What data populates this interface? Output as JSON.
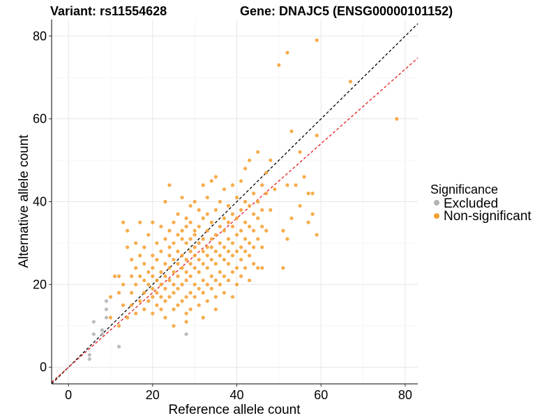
{
  "chart_data": {
    "type": "scatter",
    "title_left": "Variant: rs11554628",
    "title_right": "Gene: DNAJC5 (ENSG00000101152)",
    "xlabel": "Reference allele count",
    "ylabel": "Alternative allele count",
    "xlim": [
      -4,
      83
    ],
    "ylim": [
      -4,
      84
    ],
    "xticks": [
      0,
      20,
      40,
      60,
      80
    ],
    "yticks": [
      0,
      20,
      40,
      60,
      80
    ],
    "grid": true,
    "legend": {
      "title": "Significance",
      "position": "right",
      "entries": [
        {
          "label": "Excluded",
          "color": "#b3b3b3"
        },
        {
          "label": "Non-significant",
          "color": "#f5a033"
        }
      ]
    },
    "reference_lines": [
      {
        "name": "identity",
        "slope": 1.0,
        "intercept": 0,
        "color": "#000000",
        "style": "dashed"
      },
      {
        "name": "fit",
        "slope": 0.9,
        "intercept": 0,
        "color": "#e41a1c",
        "style": "dashed"
      }
    ],
    "series": [
      {
        "name": "Excluded",
        "color": "#b3b3b3",
        "points": [
          [
            5,
            2
          ],
          [
            5,
            3
          ],
          [
            6,
            8
          ],
          [
            6,
            11
          ],
          [
            8,
            8
          ],
          [
            8,
            9
          ],
          [
            9,
            12
          ],
          [
            9,
            14
          ],
          [
            9,
            16
          ],
          [
            12,
            5
          ],
          [
            28,
            8
          ]
        ]
      },
      {
        "name": "Non-significant",
        "color": "#f5a033",
        "points": [
          [
            10,
            12
          ],
          [
            10,
            17
          ],
          [
            11,
            22
          ],
          [
            12,
            10
          ],
          [
            12,
            18
          ],
          [
            12,
            22
          ],
          [
            13,
            15
          ],
          [
            13,
            20
          ],
          [
            13,
            35
          ],
          [
            14,
            12
          ],
          [
            14,
            29
          ],
          [
            14,
            33
          ],
          [
            15,
            15
          ],
          [
            15,
            18
          ],
          [
            15,
            22
          ],
          [
            15,
            26
          ],
          [
            16,
            13
          ],
          [
            16,
            20
          ],
          [
            16,
            24
          ],
          [
            16,
            30
          ],
          [
            17,
            16
          ],
          [
            17,
            22
          ],
          [
            17,
            27
          ],
          [
            17,
            35
          ],
          [
            18,
            14
          ],
          [
            18,
            18
          ],
          [
            18,
            21
          ],
          [
            18,
            25
          ],
          [
            18,
            29
          ],
          [
            19,
            16
          ],
          [
            19,
            20
          ],
          [
            19,
            23
          ],
          [
            19,
            32
          ],
          [
            20,
            13
          ],
          [
            20,
            17
          ],
          [
            20,
            19
          ],
          [
            20,
            22
          ],
          [
            20,
            24
          ],
          [
            20,
            27
          ],
          [
            20,
            35
          ],
          [
            21,
            15
          ],
          [
            21,
            18
          ],
          [
            21,
            21
          ],
          [
            21,
            26
          ],
          [
            21,
            30
          ],
          [
            22,
            14
          ],
          [
            22,
            17
          ],
          [
            22,
            20
          ],
          [
            22,
            23
          ],
          [
            22,
            28
          ],
          [
            22,
            34
          ],
          [
            23,
            12
          ],
          [
            23,
            16
          ],
          [
            23,
            19
          ],
          [
            23,
            22
          ],
          [
            23,
            25
          ],
          [
            23,
            31
          ],
          [
            23,
            40
          ],
          [
            24,
            17
          ],
          [
            24,
            21
          ],
          [
            24,
            24
          ],
          [
            24,
            27
          ],
          [
            24,
            29
          ],
          [
            24,
            33
          ],
          [
            24,
            44
          ],
          [
            25,
            10
          ],
          [
            25,
            14
          ],
          [
            25,
            18
          ],
          [
            25,
            20
          ],
          [
            25,
            23
          ],
          [
            25,
            26
          ],
          [
            25,
            30
          ],
          [
            25,
            35
          ],
          [
            26,
            15
          ],
          [
            26,
            19
          ],
          [
            26,
            22
          ],
          [
            26,
            25
          ],
          [
            26,
            28
          ],
          [
            26,
            32
          ],
          [
            26,
            37
          ],
          [
            27,
            16
          ],
          [
            27,
            20
          ],
          [
            27,
            24
          ],
          [
            27,
            27
          ],
          [
            27,
            31
          ],
          [
            27,
            33
          ],
          [
            27,
            41
          ],
          [
            28,
            11
          ],
          [
            28,
            13
          ],
          [
            28,
            17
          ],
          [
            28,
            21
          ],
          [
            28,
            23
          ],
          [
            28,
            26
          ],
          [
            28,
            30
          ],
          [
            28,
            34
          ],
          [
            28,
            36
          ],
          [
            29,
            14
          ],
          [
            29,
            18
          ],
          [
            29,
            22
          ],
          [
            29,
            25
          ],
          [
            29,
            28
          ],
          [
            29,
            31
          ],
          [
            29,
            35
          ],
          [
            29,
            39
          ],
          [
            30,
            17
          ],
          [
            30,
            20
          ],
          [
            30,
            24
          ],
          [
            30,
            27
          ],
          [
            30,
            29
          ],
          [
            30,
            32
          ],
          [
            30,
            33
          ],
          [
            30,
            40
          ],
          [
            31,
            15
          ],
          [
            31,
            19
          ],
          [
            31,
            23
          ],
          [
            31,
            26
          ],
          [
            31,
            30
          ],
          [
            31,
            34
          ],
          [
            31,
            38
          ],
          [
            32,
            12
          ],
          [
            32,
            18
          ],
          [
            32,
            21
          ],
          [
            32,
            25
          ],
          [
            32,
            28
          ],
          [
            32,
            31
          ],
          [
            32,
            36
          ],
          [
            32,
            44
          ],
          [
            33,
            16
          ],
          [
            33,
            20
          ],
          [
            33,
            24
          ],
          [
            33,
            27
          ],
          [
            33,
            29
          ],
          [
            33,
            33
          ],
          [
            33,
            37
          ],
          [
            33,
            41
          ],
          [
            34,
            19
          ],
          [
            34,
            22
          ],
          [
            34,
            26
          ],
          [
            34,
            29
          ],
          [
            34,
            31
          ],
          [
            34,
            35
          ],
          [
            34,
            45
          ],
          [
            35,
            14
          ],
          [
            35,
            17
          ],
          [
            35,
            21
          ],
          [
            35,
            25
          ],
          [
            35,
            28
          ],
          [
            35,
            32
          ],
          [
            35,
            38
          ],
          [
            35,
            46
          ],
          [
            36,
            20
          ],
          [
            36,
            23
          ],
          [
            36,
            27
          ],
          [
            36,
            30
          ],
          [
            36,
            34
          ],
          [
            36,
            40
          ],
          [
            37,
            18
          ],
          [
            37,
            22
          ],
          [
            37,
            26
          ],
          [
            37,
            29
          ],
          [
            37,
            33
          ],
          [
            37,
            36
          ],
          [
            37,
            43
          ],
          [
            38,
            21
          ],
          [
            38,
            25
          ],
          [
            38,
            28
          ],
          [
            38,
            31
          ],
          [
            38,
            35
          ],
          [
            38,
            39
          ],
          [
            39,
            17
          ],
          [
            39,
            23
          ],
          [
            39,
            27
          ],
          [
            39,
            30
          ],
          [
            39,
            34
          ],
          [
            39,
            37
          ],
          [
            39,
            44
          ],
          [
            40,
            20
          ],
          [
            40,
            24
          ],
          [
            40,
            28
          ],
          [
            40,
            32
          ],
          [
            40,
            36
          ],
          [
            40,
            41
          ],
          [
            41,
            22
          ],
          [
            41,
            26
          ],
          [
            41,
            29
          ],
          [
            41,
            33
          ],
          [
            41,
            38
          ],
          [
            41,
            45
          ],
          [
            42,
            24
          ],
          [
            42,
            28
          ],
          [
            42,
            31
          ],
          [
            42,
            35
          ],
          [
            42,
            40
          ],
          [
            42,
            48
          ],
          [
            43,
            21
          ],
          [
            43,
            27
          ],
          [
            43,
            30
          ],
          [
            43,
            34
          ],
          [
            43,
            39
          ],
          [
            43,
            50
          ],
          [
            44,
            25
          ],
          [
            44,
            29
          ],
          [
            44,
            33
          ],
          [
            44,
            37
          ],
          [
            44,
            42
          ],
          [
            45,
            24
          ],
          [
            45,
            31
          ],
          [
            45,
            36
          ],
          [
            45,
            40
          ],
          [
            45,
            52
          ],
          [
            46,
            24
          ],
          [
            46,
            29
          ],
          [
            46,
            34
          ],
          [
            46,
            38
          ],
          [
            46,
            44
          ],
          [
            47,
            33
          ],
          [
            47,
            42
          ],
          [
            47,
            47
          ],
          [
            48,
            38
          ],
          [
            48,
            50
          ],
          [
            49,
            43
          ],
          [
            51,
            24
          ],
          [
            51,
            33
          ],
          [
            52,
            31
          ],
          [
            52,
            44
          ],
          [
            53,
            36
          ],
          [
            53,
            57
          ],
          [
            54,
            44
          ],
          [
            55,
            39
          ],
          [
            55,
            52
          ],
          [
            56,
            46
          ],
          [
            57,
            35
          ],
          [
            57,
            42
          ],
          [
            58,
            37
          ],
          [
            58,
            42
          ],
          [
            59,
            32
          ],
          [
            59,
            56
          ],
          [
            59,
            79
          ],
          [
            50,
            73
          ],
          [
            52,
            76
          ],
          [
            67,
            69
          ],
          [
            78,
            60
          ]
        ]
      }
    ]
  }
}
